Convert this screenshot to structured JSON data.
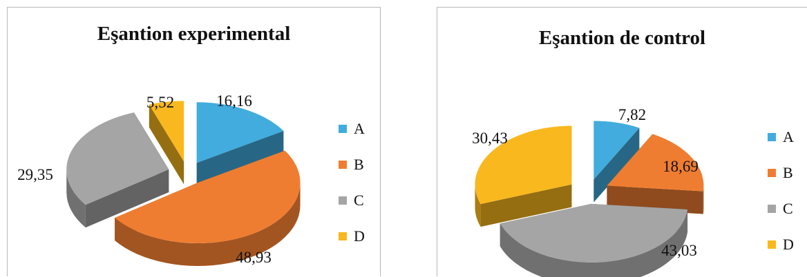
{
  "chart_data": [
    {
      "type": "pie",
      "style": "3d-exploded",
      "title": "Eşantion experimental",
      "categories": [
        "A",
        "B",
        "C",
        "D"
      ],
      "values": [
        16.16,
        48.93,
        29.35,
        5.52
      ],
      "labels": [
        "16,16",
        "48,93",
        "29,35",
        "5,52"
      ],
      "legend_position": "right"
    },
    {
      "type": "pie",
      "style": "3d-exploded",
      "title": "Eşantion de control",
      "categories": [
        "A",
        "B",
        "C",
        "D"
      ],
      "values": [
        7.82,
        18.69,
        43.03,
        30.43
      ],
      "labels": [
        "7,82",
        "18,69",
        "43,03",
        "30,43"
      ],
      "legend_position": "right"
    }
  ],
  "colors": {
    "A": "#41ACDD",
    "B": "#EF7D31",
    "C": "#A5A5A5",
    "D": "#F9B81E"
  }
}
